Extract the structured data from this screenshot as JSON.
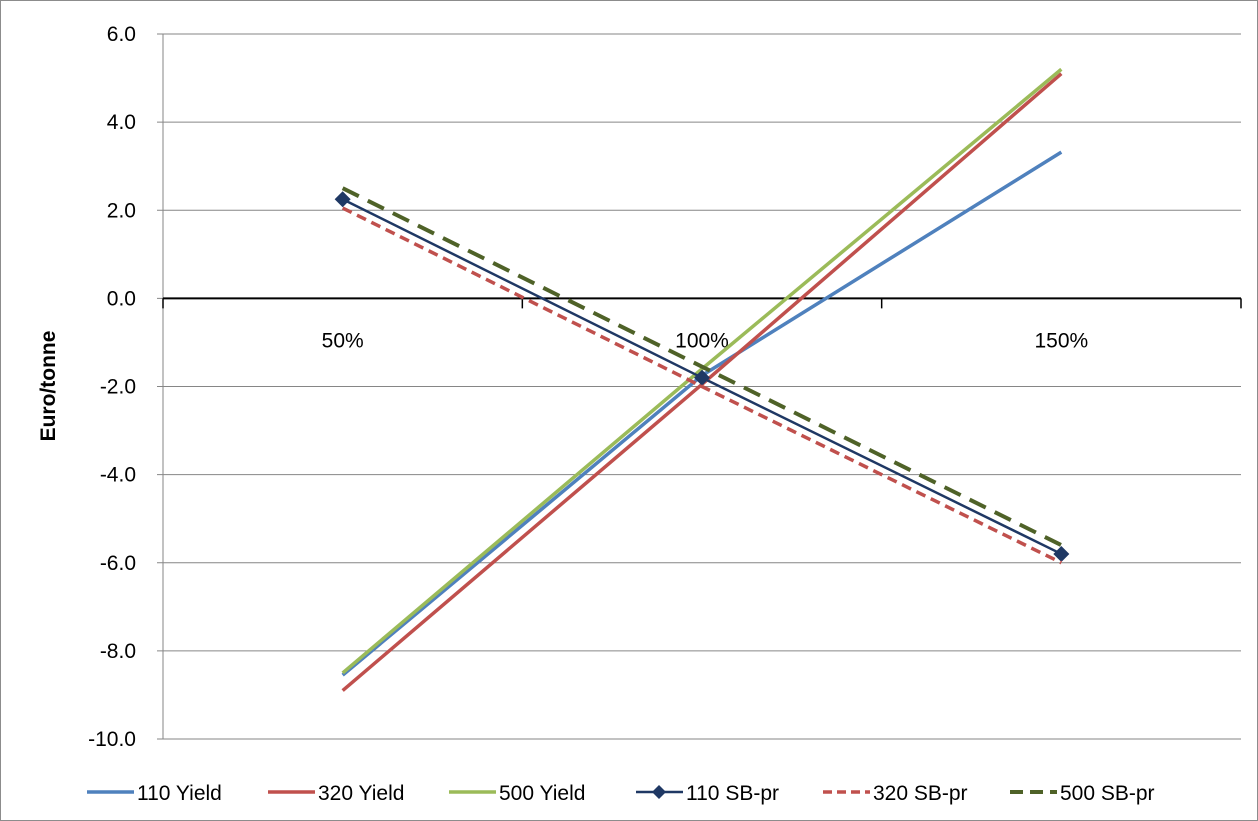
{
  "chart_data": {
    "type": "line",
    "title": "",
    "xlabel": "",
    "ylabel": "Euro/tonne",
    "categories": [
      "50%",
      "100%",
      "150%"
    ],
    "ylim": [
      -10,
      6
    ],
    "yticks": [
      "6.0",
      "4.0",
      "2.0",
      "0.0",
      "-2.0",
      "-4.0",
      "-6.0",
      "-8.0",
      "-10.0"
    ],
    "grid": true,
    "legend_position": "bottom",
    "series": [
      {
        "name": "110 Yield",
        "values": [
          -8.55,
          -1.75,
          3.32
        ],
        "color": "#4f81bd",
        "dash": "solid",
        "marker": "none"
      },
      {
        "name": "320 Yield",
        "values": [
          -8.9,
          -1.95,
          5.1
        ],
        "color": "#c0504d",
        "dash": "solid",
        "marker": "none"
      },
      {
        "name": "500 Yield",
        "values": [
          -8.5,
          -1.6,
          5.2
        ],
        "color": "#9bbb59",
        "dash": "solid",
        "marker": "none"
      },
      {
        "name": "110 SB-pr",
        "values": [
          2.25,
          -1.8,
          -5.8
        ],
        "color": "#1f3864",
        "dash": "solid",
        "marker": "diamond"
      },
      {
        "name": "320 SB-pr",
        "values": [
          2.05,
          -2.0,
          -6.0
        ],
        "color": "#c0504d",
        "dash": "dash",
        "marker": "none"
      },
      {
        "name": "500 SB-pr",
        "values": [
          2.5,
          -1.55,
          -5.6
        ],
        "color": "#4f6228",
        "dash": "longdash",
        "marker": "none"
      }
    ]
  }
}
